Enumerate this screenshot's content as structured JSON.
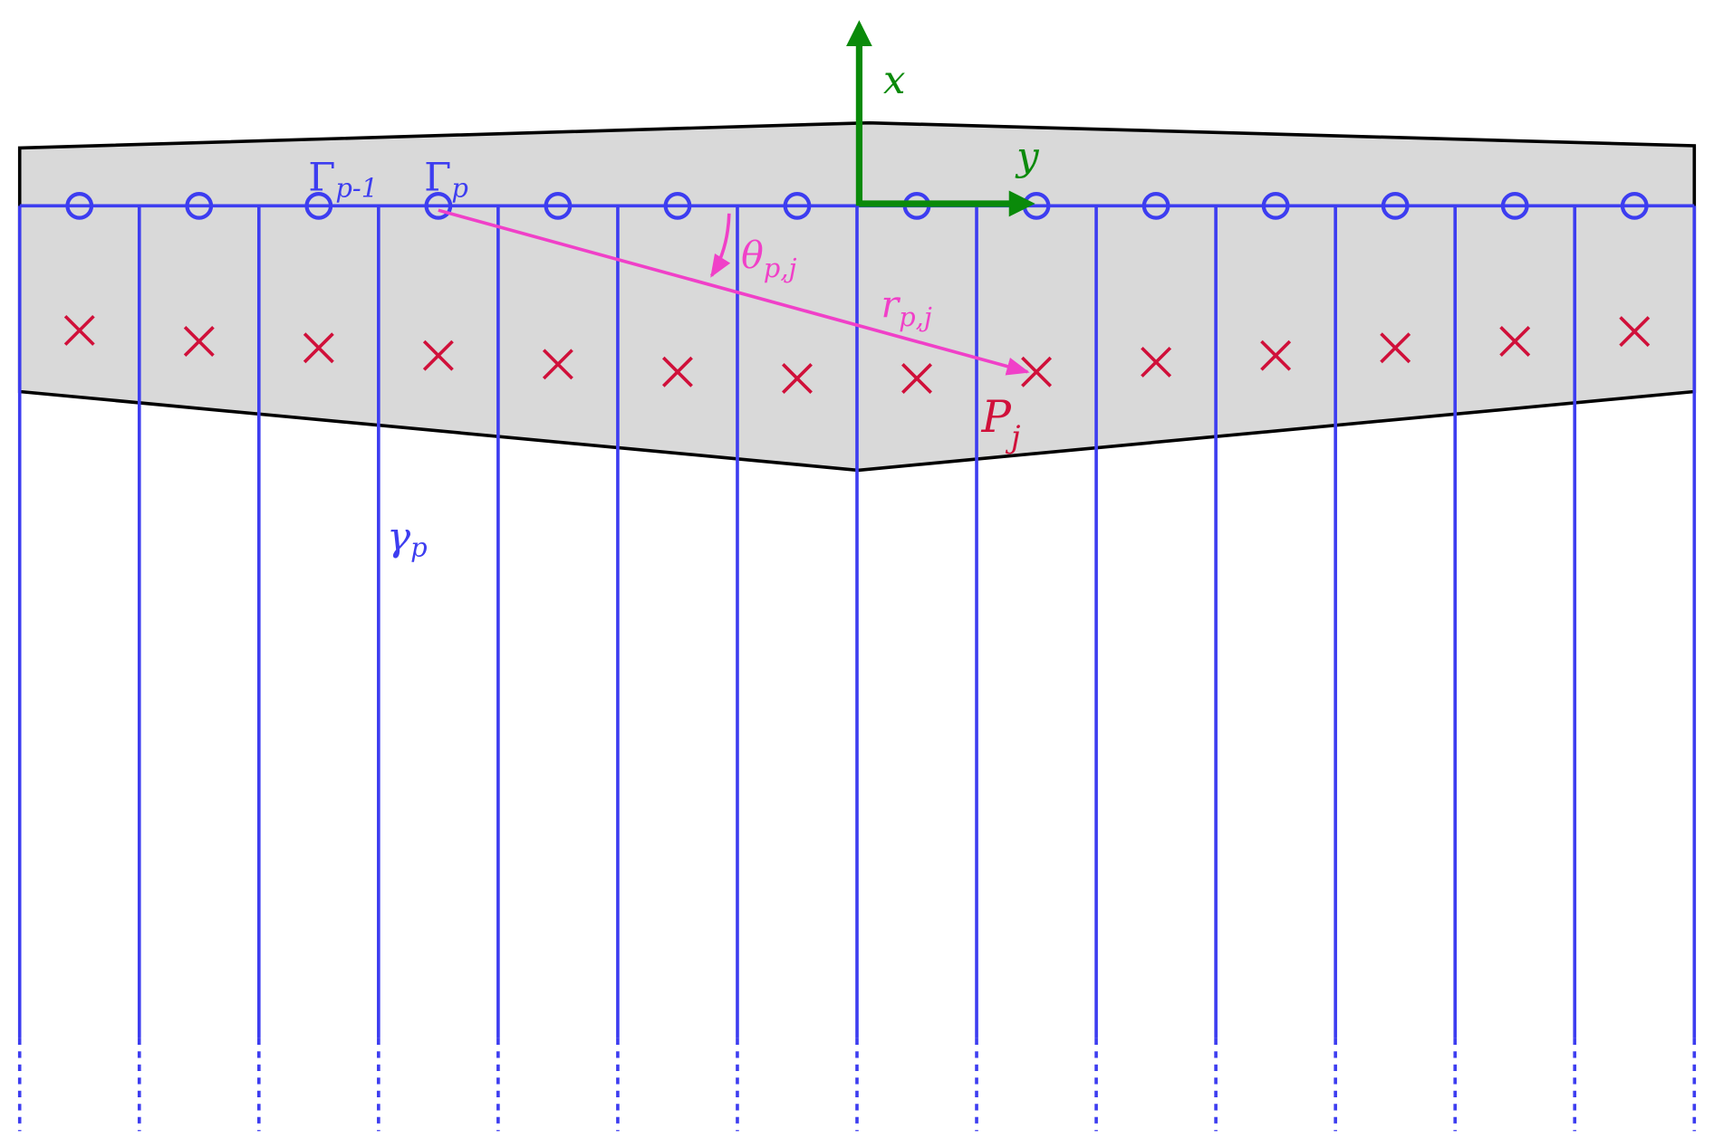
{
  "axes": {
    "x": "x",
    "y": "y"
  },
  "labels": {
    "gamma_prev": {
      "main": "Γ",
      "sub": "p-1"
    },
    "gamma_cur": {
      "main": "Γ",
      "sub": "p"
    },
    "theta": {
      "main": "θ",
      "sub": "p,j"
    },
    "r": {
      "main": "r",
      "sub": "p,j"
    },
    "point": {
      "main": "P",
      "sub": "j"
    },
    "ray": {
      "main": "γ",
      "sub": "p"
    }
  }
}
